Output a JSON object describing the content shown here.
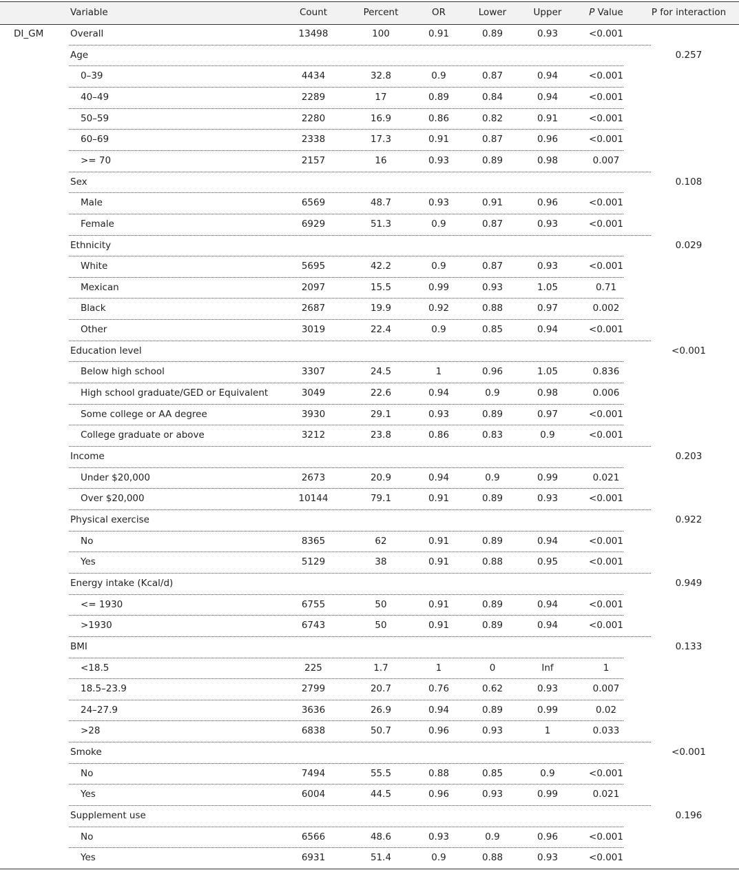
{
  "table": {
    "columns": [
      "Variable",
      "Count",
      "Percent",
      "OR",
      "Lower",
      "Upper",
      "P Value",
      "P for interaction"
    ],
    "exposure": "DI_GM",
    "overall": [
      "Overall",
      "13498",
      "100",
      "0.91",
      "0.89",
      "0.93",
      "<0.001"
    ],
    "groups": [
      {
        "label": "Age",
        "p_interaction": "0.257",
        "rows": [
          [
            "0–39",
            "4434",
            "32.8",
            "0.9",
            "0.87",
            "0.94",
            "<0.001"
          ],
          [
            "40–49",
            "2289",
            "17",
            "0.89",
            "0.84",
            "0.94",
            "<0.001"
          ],
          [
            "50–59",
            "2280",
            "16.9",
            "0.86",
            "0.82",
            "0.91",
            "<0.001"
          ],
          [
            "60–69",
            "2338",
            "17.3",
            "0.91",
            "0.87",
            "0.96",
            "<0.001"
          ],
          [
            ">= 70",
            "2157",
            "16",
            "0.93",
            "0.89",
            "0.98",
            "0.007"
          ]
        ]
      },
      {
        "label": "Sex",
        "p_interaction": "0.108",
        "rows": [
          [
            "Male",
            "6569",
            "48.7",
            "0.93",
            "0.91",
            "0.96",
            "<0.001"
          ],
          [
            "Female",
            "6929",
            "51.3",
            "0.9",
            "0.87",
            "0.93",
            "<0.001"
          ]
        ]
      },
      {
        "label": "Ethnicity",
        "p_interaction": "0.029",
        "rows": [
          [
            "White",
            "5695",
            "42.2",
            "0.9",
            "0.87",
            "0.93",
            "<0.001"
          ],
          [
            "Mexican",
            "2097",
            "15.5",
            "0.99",
            "0.93",
            "1.05",
            "0.71"
          ],
          [
            "Black",
            "2687",
            "19.9",
            "0.92",
            "0.88",
            "0.97",
            "0.002"
          ],
          [
            "Other",
            "3019",
            "22.4",
            "0.9",
            "0.85",
            "0.94",
            "<0.001"
          ]
        ]
      },
      {
        "label": "Education level",
        "p_interaction": "<0.001",
        "rows": [
          [
            "Below high school",
            "3307",
            "24.5",
            "1",
            "0.96",
            "1.05",
            "0.836"
          ],
          [
            "High school graduate/GED or Equivalent",
            "3049",
            "22.6",
            "0.94",
            "0.9",
            "0.98",
            "0.006"
          ],
          [
            "Some college or AA degree",
            "3930",
            "29.1",
            "0.93",
            "0.89",
            "0.97",
            "<0.001"
          ],
          [
            "College graduate  or above",
            "3212",
            "23.8",
            "0.86",
            "0.83",
            "0.9",
            "<0.001"
          ]
        ]
      },
      {
        "label": "Income",
        "p_interaction": "0.203",
        "rows": [
          [
            "Under $20,000",
            "2673",
            "20.9",
            "0.94",
            "0.9",
            "0.99",
            "0.021"
          ],
          [
            "Over $20,000",
            "10144",
            "79.1",
            "0.91",
            "0.89",
            "0.93",
            "<0.001"
          ]
        ]
      },
      {
        "label": "Physical exercise",
        "p_interaction": "0.922",
        "rows": [
          [
            "No",
            "8365",
            "62",
            "0.91",
            "0.89",
            "0.94",
            "<0.001"
          ],
          [
            "Yes",
            "5129",
            "38",
            "0.91",
            "0.88",
            "0.95",
            "<0.001"
          ]
        ]
      },
      {
        "label": "Energy intake (Kcal/d)",
        "p_interaction": "0.949",
        "rows": [
          [
            "<= 1930",
            "6755",
            "50",
            "0.91",
            "0.89",
            "0.94",
            "<0.001"
          ],
          [
            ">1930",
            "6743",
            "50",
            "0.91",
            "0.89",
            "0.94",
            "<0.001"
          ]
        ]
      },
      {
        "label": "BMI",
        "p_interaction": "0.133",
        "rows": [
          [
            "<18.5",
            "225",
            "1.7",
            "1",
            "0",
            "Inf",
            "1"
          ],
          [
            "18.5–23.9",
            "2799",
            "20.7",
            "0.76",
            "0.62",
            "0.93",
            "0.007"
          ],
          [
            "24–27.9",
            "3636",
            "26.9",
            "0.94",
            "0.89",
            "0.99",
            "0.02"
          ],
          [
            ">28",
            "6838",
            "50.7",
            "0.96",
            "0.93",
            "1",
            "0.033"
          ]
        ]
      },
      {
        "label": "Smoke",
        "p_interaction": "<0.001",
        "rows": [
          [
            "No",
            "7494",
            "55.5",
            "0.88",
            "0.85",
            "0.9",
            "<0.001"
          ],
          [
            "Yes",
            "6004",
            "44.5",
            "0.96",
            "0.93",
            "0.99",
            "0.021"
          ]
        ]
      },
      {
        "label": "Supplement use",
        "p_interaction": "0.196",
        "rows": [
          [
            "No",
            "6566",
            "48.6",
            "0.93",
            "0.9",
            "0.96",
            "<0.001"
          ],
          [
            "Yes",
            "6931",
            "51.4",
            "0.9",
            "0.88",
            "0.93",
            "<0.001"
          ]
        ]
      }
    ]
  }
}
